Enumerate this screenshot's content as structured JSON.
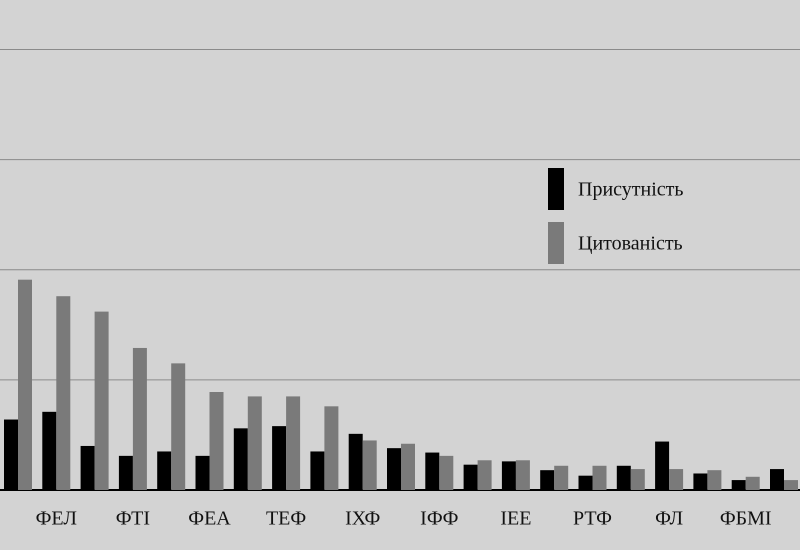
{
  "chart_data": {
    "type": "bar",
    "categories": [
      null,
      "ФЕЛ",
      null,
      "ФТІ",
      null,
      "ФЕА",
      null,
      "ТЕФ",
      null,
      "ІХФ",
      null,
      "ІФФ",
      null,
      "ІЕЕ",
      null,
      "РТФ",
      null,
      "ФЛ",
      null,
      "ФБМІ",
      null
    ],
    "series": [
      {
        "name": "Присутність",
        "color": "#000000",
        "values": [
          0.64,
          0.71,
          0.4,
          0.31,
          0.35,
          0.31,
          0.56,
          0.58,
          0.35,
          0.51,
          0.38,
          0.34,
          0.23,
          0.26,
          0.18,
          0.13,
          0.22,
          0.44,
          0.15,
          0.09,
          0.19
        ]
      },
      {
        "name": "Цитованість",
        "color": "#7a7a7a",
        "values": [
          1.91,
          1.76,
          1.62,
          1.29,
          1.15,
          0.89,
          0.85,
          0.85,
          0.76,
          0.45,
          0.42,
          0.31,
          0.27,
          0.27,
          0.22,
          0.22,
          0.19,
          0.19,
          0.18,
          0.12,
          0.09
        ]
      }
    ],
    "ylim": [
      0,
      4.45
    ],
    "gridlines": [
      0,
      1,
      2,
      3,
      4
    ],
    "legend": "upper right"
  }
}
